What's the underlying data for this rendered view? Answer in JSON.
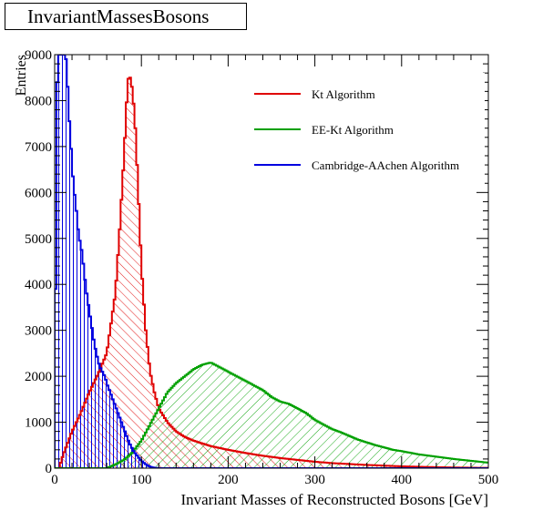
{
  "chart_data": {
    "type": "histogram",
    "title": "InvariantMassesBosons",
    "xlabel": "Invariant Masses of Reconstructed Bosons [GeV]",
    "ylabel": "Entries",
    "xlim": [
      0,
      500
    ],
    "ylim": [
      0,
      9000
    ],
    "x_ticks": [
      0,
      100,
      200,
      300,
      400,
      500
    ],
    "y_ticks": [
      0,
      1000,
      2000,
      3000,
      4000,
      5000,
      6000,
      7000,
      8000,
      9000
    ],
    "grid": false,
    "legend_position": "top-right",
    "series": [
      {
        "name": "Kt Algorithm",
        "color": "#e00000",
        "hatch": "forward-diagonal",
        "points": [
          [
            0,
            0
          ],
          [
            5,
            0
          ],
          [
            10,
            300
          ],
          [
            20,
            800
          ],
          [
            30,
            1200
          ],
          [
            40,
            1650
          ],
          [
            50,
            2050
          ],
          [
            60,
            2500
          ],
          [
            70,
            3800
          ],
          [
            75,
            5200
          ],
          [
            80,
            6800
          ],
          [
            84,
            8350
          ],
          [
            86,
            8600
          ],
          [
            88,
            8400
          ],
          [
            90,
            8200
          ],
          [
            93,
            7400
          ],
          [
            96,
            6200
          ],
          [
            100,
            4400
          ],
          [
            105,
            3000
          ],
          [
            110,
            2100
          ],
          [
            115,
            1650
          ],
          [
            120,
            1300
          ],
          [
            130,
            1000
          ],
          [
            140,
            800
          ],
          [
            150,
            680
          ],
          [
            160,
            600
          ],
          [
            170,
            540
          ],
          [
            180,
            480
          ],
          [
            190,
            440
          ],
          [
            200,
            400
          ],
          [
            220,
            330
          ],
          [
            240,
            270
          ],
          [
            260,
            220
          ],
          [
            280,
            180
          ],
          [
            300,
            140
          ],
          [
            320,
            110
          ],
          [
            340,
            90
          ],
          [
            360,
            70
          ],
          [
            380,
            55
          ],
          [
            400,
            40
          ],
          [
            420,
            30
          ],
          [
            440,
            22
          ],
          [
            460,
            15
          ],
          [
            480,
            10
          ],
          [
            500,
            6
          ]
        ]
      },
      {
        "name": "EE-Kt Algorithm",
        "color": "#00a000",
        "hatch": "backward-diagonal",
        "points": [
          [
            0,
            0
          ],
          [
            60,
            0
          ],
          [
            70,
            80
          ],
          [
            80,
            180
          ],
          [
            90,
            350
          ],
          [
            100,
            600
          ],
          [
            110,
            950
          ],
          [
            120,
            1300
          ],
          [
            130,
            1650
          ],
          [
            140,
            1850
          ],
          [
            150,
            2000
          ],
          [
            160,
            2150
          ],
          [
            170,
            2250
          ],
          [
            180,
            2300
          ],
          [
            190,
            2200
          ],
          [
            200,
            2100
          ],
          [
            210,
            2000
          ],
          [
            220,
            1900
          ],
          [
            230,
            1800
          ],
          [
            240,
            1700
          ],
          [
            250,
            1550
          ],
          [
            260,
            1450
          ],
          [
            270,
            1400
          ],
          [
            280,
            1300
          ],
          [
            290,
            1200
          ],
          [
            300,
            1050
          ],
          [
            310,
            950
          ],
          [
            320,
            850
          ],
          [
            330,
            780
          ],
          [
            340,
            700
          ],
          [
            350,
            620
          ],
          [
            360,
            560
          ],
          [
            370,
            500
          ],
          [
            380,
            450
          ],
          [
            390,
            400
          ],
          [
            400,
            370
          ],
          [
            420,
            300
          ],
          [
            440,
            250
          ],
          [
            460,
            200
          ],
          [
            480,
            160
          ],
          [
            500,
            120
          ]
        ]
      },
      {
        "name": "Cambridge-AAchen Algorithm",
        "color": "#0000e0",
        "hatch": "vertical",
        "points": [
          [
            0,
            0
          ],
          [
            2,
            7800
          ],
          [
            4,
            9000
          ],
          [
            6,
            9000
          ],
          [
            8,
            9000
          ],
          [
            10,
            9000
          ],
          [
            12,
            9000
          ],
          [
            14,
            8800
          ],
          [
            16,
            7800
          ],
          [
            18,
            7300
          ],
          [
            20,
            6600
          ],
          [
            22,
            6100
          ],
          [
            24,
            5800
          ],
          [
            26,
            5400
          ],
          [
            28,
            5000
          ],
          [
            30,
            4900
          ],
          [
            32,
            4600
          ],
          [
            34,
            4300
          ],
          [
            36,
            3900
          ],
          [
            38,
            3700
          ],
          [
            40,
            3400
          ],
          [
            42,
            3200
          ],
          [
            44,
            2900
          ],
          [
            46,
            2700
          ],
          [
            48,
            2500
          ],
          [
            50,
            2350
          ],
          [
            52,
            2200
          ],
          [
            54,
            2150
          ],
          [
            56,
            2050
          ],
          [
            58,
            2000
          ],
          [
            60,
            1850
          ],
          [
            62,
            1750
          ],
          [
            64,
            1650
          ],
          [
            66,
            1550
          ],
          [
            68,
            1450
          ],
          [
            70,
            1350
          ],
          [
            72,
            1250
          ],
          [
            74,
            1150
          ],
          [
            76,
            1050
          ],
          [
            78,
            950
          ],
          [
            80,
            850
          ],
          [
            82,
            750
          ],
          [
            84,
            650
          ],
          [
            86,
            550
          ],
          [
            88,
            480
          ],
          [
            90,
            400
          ],
          [
            92,
            350
          ],
          [
            94,
            300
          ],
          [
            96,
            250
          ],
          [
            98,
            200
          ],
          [
            100,
            160
          ],
          [
            104,
            100
          ],
          [
            108,
            50
          ],
          [
            112,
            20
          ],
          [
            116,
            5
          ],
          [
            120,
            0
          ]
        ]
      }
    ]
  }
}
